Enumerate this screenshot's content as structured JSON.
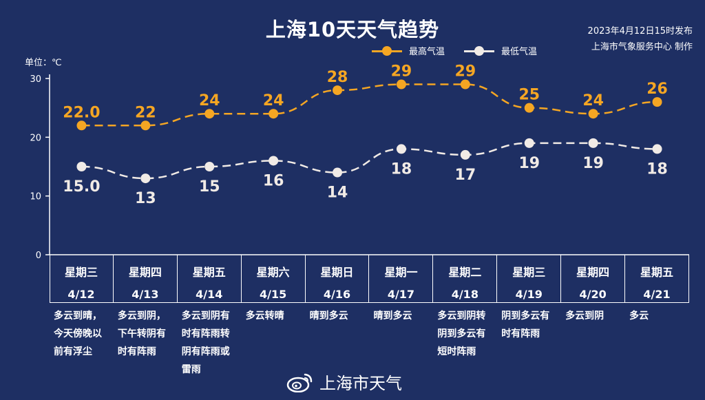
{
  "title": "上海10天天气趋势",
  "publish_time": "2023年4月12日15时发布",
  "publisher": "上海市气象服务中心 制作",
  "unit_label": "单位：℃",
  "watermark": "上海市天气",
  "colors": {
    "background": "#1e2f63",
    "high": "#f5a623",
    "low": "#f1ebe6"
  },
  "chart_data": {
    "type": "line",
    "yticks": [
      0,
      10,
      20,
      30
    ],
    "ylim": [
      0,
      30
    ],
    "legend_position": "top-right",
    "series": [
      {
        "name": "最高气温",
        "values": [
          22.0,
          22,
          24,
          24,
          28,
          29,
          29,
          25,
          24,
          26
        ],
        "labels": [
          "22.0",
          "22",
          "24",
          "24",
          "28",
          "29",
          "29",
          "25",
          "24",
          "26"
        ]
      },
      {
        "name": "最低气温",
        "values": [
          15.0,
          13,
          15,
          16,
          14,
          18,
          17,
          19,
          19,
          18
        ],
        "labels": [
          "15.0",
          "13",
          "15",
          "16",
          "14",
          "18",
          "17",
          "19",
          "19",
          "18"
        ]
      }
    ]
  },
  "days": [
    {
      "weekday": "星期三",
      "date": "4/12",
      "desc": "多云到晴，\n今天傍晚以\n前有浮尘"
    },
    {
      "weekday": "星期四",
      "date": "4/13",
      "desc": "多云到阴，\n下午转阴有\n时有阵雨"
    },
    {
      "weekday": "星期五",
      "date": "4/14",
      "desc": "多云到阴有\n时有阵雨转\n阴有阵雨或\n雷雨"
    },
    {
      "weekday": "星期六",
      "date": "4/15",
      "desc": "多云转晴"
    },
    {
      "weekday": "星期日",
      "date": "4/16",
      "desc": "晴到多云"
    },
    {
      "weekday": "星期一",
      "date": "4/17",
      "desc": "晴到多云"
    },
    {
      "weekday": "星期二",
      "date": "4/18",
      "desc": "多云到阴转\n阴到多云有\n短时阵雨"
    },
    {
      "weekday": "星期三",
      "date": "4/19",
      "desc": "阴到多云有\n时有阵雨"
    },
    {
      "weekday": "星期四",
      "date": "4/20",
      "desc": "多云到阴"
    },
    {
      "weekday": "星期五",
      "date": "4/21",
      "desc": "多云"
    }
  ]
}
